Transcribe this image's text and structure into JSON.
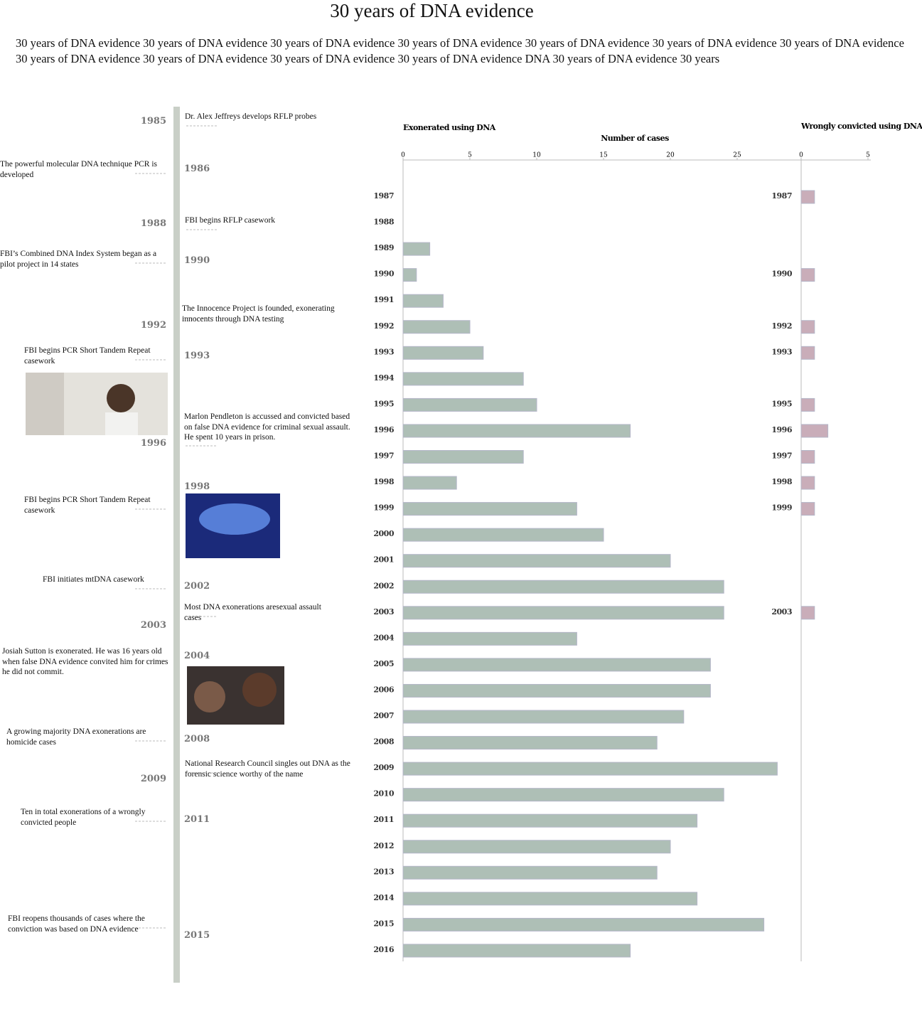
{
  "header": {
    "title": "30 years of DNA evidence",
    "subtitle": "30 years of DNA evidence 30 years of DNA evidence 30 years of DNA evidence 30 years of DNA evidence 30 years of DNA evidence 30 years of DNA evidence 30 years of DNA evidence 30 years of DNA evidence  30 years of DNA evidence  30 years of DNA evidence  30 years of DNA evidence DNA 30 years of DNA evidence 30 years"
  },
  "timeline": [
    {
      "year": "1985",
      "text": "Dr. Alex Jeffreys develops RFLP probes"
    },
    {
      "year": "1986",
      "text": "The powerful molecular DNA technique PCR is developed"
    },
    {
      "year": "1988",
      "text": "FBI begins RFLP casework"
    },
    {
      "year": "1990",
      "text": "FBI’s Combined DNA Index System began as a pilot project in 14 states"
    },
    {
      "year": "1992",
      "text": "The Innocence Project is founded, exonerating innocents through DNA testing"
    },
    {
      "year": "1993",
      "text": "FBI begins PCR Short Tandem Repeat casework"
    },
    {
      "year": "1996",
      "text": "Marlon Pendleton is accussed and convicted based on false DNA evidence for criminal sexual assault. He spent 10 years in prison."
    },
    {
      "year": "1998",
      "text": "FBI begins PCR Short Tandem Repeat casework"
    },
    {
      "year": "2002",
      "text": "FBI initiates mtDNA casework"
    },
    {
      "year": "2003",
      "text": "Most DNA exonerations aresexual assault cases"
    },
    {
      "year": "2004",
      "text": "Josiah Sutton is exonerated. He was 16 years old when false DNA evidence convited him for crimes he did not commit."
    },
    {
      "year": "2008",
      "text": "A growing majority DNA exonerations are homicide cases"
    },
    {
      "year": "2009",
      "text": "National Research Council singles out DNA as the forensic science worthy of the name"
    },
    {
      "year": "2011",
      "text": "Ten in total exonerations of a wrongly convicted people"
    },
    {
      "year": "2015",
      "text": "FBI reopens thousands of cases where the conviction was based on DNA evidence"
    }
  ],
  "chart_data": [
    {
      "type": "hbar",
      "title": "Exonerated using DNA",
      "x_label": "Number of cases",
      "color": "#aebfb6",
      "categories": [
        "1987",
        "1988",
        "1989",
        "1990",
        "1991",
        "1992",
        "1993",
        "1994",
        "1995",
        "1996",
        "1997",
        "1998",
        "1999",
        "2000",
        "2001",
        "2002",
        "2003",
        "2004",
        "2005",
        "2006",
        "2007",
        "2008",
        "2009",
        "2010",
        "2011",
        "2012",
        "2013",
        "2014",
        "2015",
        "2016"
      ],
      "values": [
        0,
        0,
        2,
        1,
        3,
        5,
        6,
        9,
        10,
        17,
        9,
        4,
        13,
        15,
        20,
        24,
        24,
        13,
        23,
        23,
        21,
        19,
        28,
        24,
        22,
        20,
        19,
        22,
        27,
        17
      ],
      "xlim": [
        0,
        29.8
      ],
      "xticks": [
        0,
        5,
        10,
        15,
        20,
        25
      ]
    },
    {
      "type": "hbar",
      "title": "Wrongly convicted using DNA",
      "color": "#c9adb9",
      "categories": [
        "1987",
        "1990",
        "1992",
        "1993",
        "1995",
        "1996",
        "1997",
        "1998",
        "1999",
        "2003"
      ],
      "values": [
        1,
        1,
        1,
        1,
        1,
        2,
        1,
        1,
        1,
        1
      ],
      "xlim": [
        0,
        5.2
      ],
      "xticks": [
        0,
        5
      ]
    }
  ]
}
